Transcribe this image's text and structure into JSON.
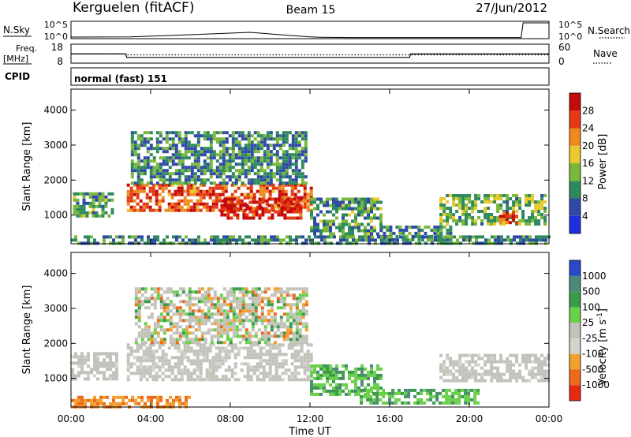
{
  "header": {
    "station": "Kerguelen (fitACF)",
    "beam": "Beam 15",
    "date": "27/Jun/2012"
  },
  "status_panels": {
    "nsky_label": "N.Sky",
    "nsearch_label": "N.Search",
    "freq_label_line1": "Freq.",
    "freq_label_line2": "[MHz]",
    "nave_label": "Nave",
    "cpid_label": "CPID",
    "cpid_value": "normal (fast) 151",
    "nsky_ticks": [
      "10^5",
      "10^0"
    ],
    "nsearch_ticks": [
      "10^5",
      "10^0"
    ],
    "freq_ticks": [
      "18",
      "8"
    ],
    "nave_ticks": [
      "60",
      "0"
    ],
    "nsky_trace": {
      "x_hours": [
        0,
        3,
        6,
        9,
        10.5,
        12,
        12.5,
        14,
        18,
        21,
        22.6,
        22.7,
        22.9,
        24
      ],
      "level": [
        0.05,
        0.06,
        0.2,
        0.35,
        0.2,
        0.06,
        0.04,
        0.02,
        0.02,
        0.02,
        0.02,
        0.95,
        0.95,
        0.95
      ]
    },
    "freq_trace": {
      "x_hours": [
        0,
        2.75,
        2.8,
        17.0,
        17.05,
        24
      ],
      "mhz": [
        12.8,
        12.8,
        10.8,
        10.8,
        12.8,
        12.8
      ]
    },
    "nave_trace": {
      "x_hours": [
        0,
        2.75,
        2.8,
        24
      ],
      "value": [
        29,
        29,
        26,
        26
      ]
    }
  },
  "chart_data": [
    {
      "type": "heatmap",
      "panel": "power",
      "ylabel": "Slant Range [km]",
      "y_ticks": [
        1000,
        2000,
        3000,
        4000
      ],
      "ylim": [
        180,
        4600
      ],
      "xlim_hours": [
        0,
        24
      ],
      "colorbar_label": "Power [dB]",
      "colorbar_ticks": [
        4,
        8,
        12,
        16,
        20,
        24,
        28
      ],
      "colorbar_colors": [
        "#1f2fe0",
        "#2f4aa6",
        "#2e8a5c",
        "#7ab83c",
        "#e8c92f",
        "#ec8a1f",
        "#e43a12",
        "#c40a0a"
      ],
      "regions": [
        {
          "t0": 0.1,
          "t1": 2.1,
          "r0": 950,
          "r1": 1650,
          "level": 0.35
        },
        {
          "t0": 2.8,
          "t1": 12.0,
          "r0": 1100,
          "r1": 1900,
          "level": 0.78
        },
        {
          "t0": 7.5,
          "t1": 11.5,
          "r0": 900,
          "r1": 1500,
          "level": 0.92
        },
        {
          "t0": 3.0,
          "t1": 11.8,
          "r0": 1900,
          "r1": 3400,
          "level": 0.3
        },
        {
          "t0": 12.0,
          "t1": 15.5,
          "r0": 500,
          "r1": 1500,
          "level": 0.35
        },
        {
          "t0": 15.5,
          "t1": 19.0,
          "r0": 300,
          "r1": 700,
          "level": 0.3
        },
        {
          "t0": 18.5,
          "t1": 23.8,
          "r0": 700,
          "r1": 1600,
          "level": 0.42
        },
        {
          "t0": 21.5,
          "t1": 22.3,
          "r0": 800,
          "r1": 1100,
          "level": 0.85
        },
        {
          "t0": 0.0,
          "t1": 24.0,
          "r0": 180,
          "r1": 420,
          "level": 0.3
        }
      ]
    },
    {
      "type": "heatmap",
      "panel": "velocity",
      "xlabel": "Time UT",
      "ylabel": "Slant Range [km]",
      "x_tick_labels": [
        "00:00",
        "04:00",
        "08:00",
        "12:00",
        "16:00",
        "20:00",
        "00:00"
      ],
      "x_ticks_hours": [
        0,
        4,
        8,
        12,
        16,
        20,
        24
      ],
      "y_ticks": [
        1000,
        2000,
        3000,
        4000
      ],
      "ylim": [
        180,
        4600
      ],
      "xlim_hours": [
        0,
        24
      ],
      "colorbar_label": "Velocity [m s^-1]",
      "colorbar_ticks": [
        "1000",
        "500",
        "100",
        "25",
        "-25",
        "-100",
        "-500",
        "-1000"
      ],
      "colorbar_colors": [
        "#2a48c8",
        "#4a8a7a",
        "#3a9a4a",
        "#6ad04a",
        "#c2c2bb",
        "#d3d3cc",
        "#f2a030",
        "#ec6a1a",
        "#e42a12"
      ],
      "regions": [
        {
          "t0": 0.0,
          "t1": 2.3,
          "r0": 950,
          "r1": 1750,
          "class": "ground"
        },
        {
          "t0": 2.8,
          "t1": 12.0,
          "r0": 1000,
          "r1": 2000,
          "class": "ground"
        },
        {
          "t0": 3.2,
          "t1": 11.8,
          "r0": 2000,
          "r1": 3600,
          "class": "mixed"
        },
        {
          "t0": 12.0,
          "t1": 15.5,
          "r0": 500,
          "r1": 1400,
          "class": "positive"
        },
        {
          "t0": 14.5,
          "t1": 20.5,
          "r0": 250,
          "r1": 700,
          "class": "positive"
        },
        {
          "t0": 18.5,
          "t1": 23.9,
          "r0": 900,
          "r1": 1700,
          "class": "ground"
        },
        {
          "t0": 0.0,
          "t1": 6.0,
          "r0": 200,
          "r1": 500,
          "class": "negative"
        }
      ]
    }
  ]
}
